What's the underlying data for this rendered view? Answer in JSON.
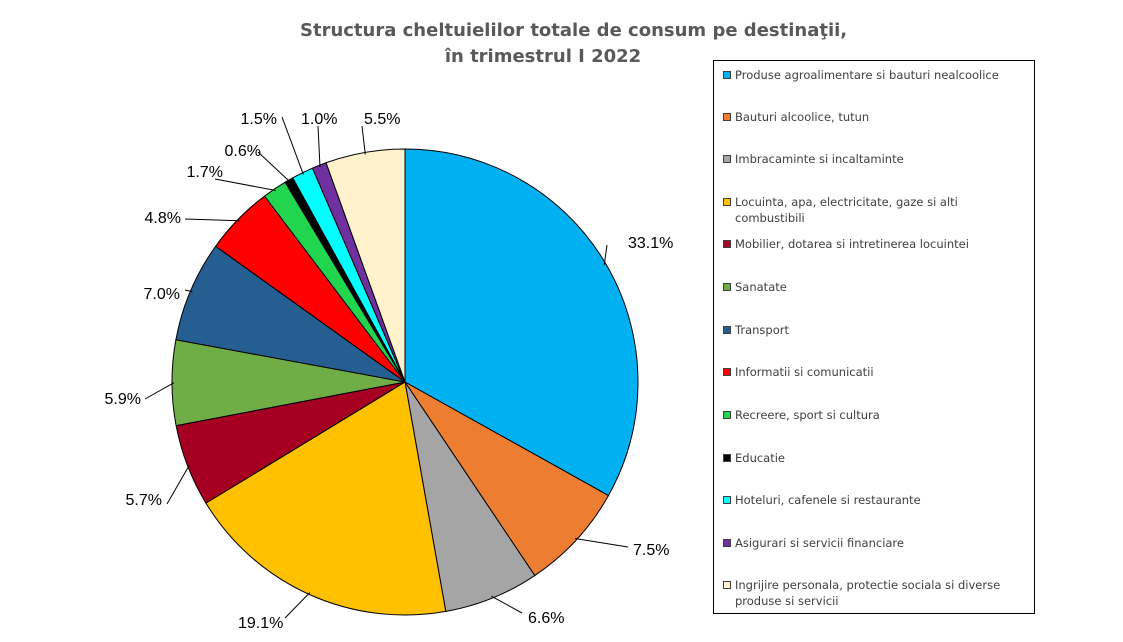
{
  "title": {
    "line1": "Structura cheltuielilor totale de consum pe destinaţii,",
    "line2": "în trimestrul I 2022"
  },
  "chart_data": {
    "type": "pie",
    "title": "Structura cheltuielilor totale de consum pe destinaţii, în trimestrul I 2022",
    "start_angle_deg": 0,
    "direction": "clockwise",
    "legend_position": "right",
    "slices": [
      {
        "name": "Produse agroalimentare si bauturi nealcoolice",
        "value": 33.1,
        "label": "33.1%",
        "color": "#00B0F0"
      },
      {
        "name": "Bauturi alcoolice, tutun",
        "value": 7.5,
        "label": "7.5%",
        "color": "#ED7D31"
      },
      {
        "name": "Imbracaminte si incaltaminte",
        "value": 6.6,
        "label": "6.6%",
        "color": "#A5A5A5"
      },
      {
        "name": "Locuinta, apa, electricitate, gaze si alti combustibili",
        "value": 19.1,
        "label": "19.1%",
        "color": "#FFC000"
      },
      {
        "name": "Mobilier, dotarea si intretinerea locuintei",
        "value": 5.7,
        "label": "5.7%",
        "color": "#A50021"
      },
      {
        "name": "Sanatate",
        "value": 5.9,
        "label": "5.9%",
        "color": "#70AD47"
      },
      {
        "name": "Transport",
        "value": 7.0,
        "label": "7.0%",
        "color": "#255E91"
      },
      {
        "name": "Informatii si comunicatii",
        "value": 4.8,
        "label": "4.8%",
        "color": "#FF0000"
      },
      {
        "name": "Recreere, sport si cultura",
        "value": 1.7,
        "label": "1.7%",
        "color": "#21D64E"
      },
      {
        "name": "Educatie",
        "value": 0.6,
        "label": "0.6%",
        "color": "#000000"
      },
      {
        "name": "Hoteluri, cafenele si restaurante",
        "value": 1.5,
        "label": "1.5%",
        "color": "#00FFFF"
      },
      {
        "name": "Asigurari si servicii financiare",
        "value": 1.0,
        "label": "1.0%",
        "color": "#7030A0"
      },
      {
        "name": "Ingrijire personala, protectie sociala si diverse produse si servicii",
        "value": 5.5,
        "label": "5.5%",
        "color": "#FFF2CC"
      }
    ]
  },
  "legend": {
    "items": [
      {
        "label": "Produse agroalimentare si bauturi nealcoolice",
        "color": "#00B0F0"
      },
      {
        "label": "Bauturi alcoolice, tutun",
        "color": "#ED7D31"
      },
      {
        "label": "Imbracaminte si incaltaminte",
        "color": "#A5A5A5"
      },
      {
        "label": "Locuinta, apa, electricitate, gaze si alti combustibili",
        "color": "#FFC000"
      },
      {
        "label": "Mobilier, dotarea si intretinerea locuintei",
        "color": "#A50021"
      },
      {
        "label": "Sanatate",
        "color": "#70AD47"
      },
      {
        "label": "Transport",
        "color": "#255E91"
      },
      {
        "label": "Informatii si comunicatii",
        "color": "#FF0000"
      },
      {
        "label": "Recreere, sport si cultura",
        "color": "#21D64E"
      },
      {
        "label": "Educatie",
        "color": "#000000"
      },
      {
        "label": "Hoteluri, cafenele si restaurante",
        "color": "#00FFFF"
      },
      {
        "label": "Asigurari si servicii financiare",
        "color": "#7030A0"
      },
      {
        "label": "Ingrijire personala, protectie sociala si diverse produse si servicii",
        "color": "#FFF2CC"
      }
    ]
  }
}
